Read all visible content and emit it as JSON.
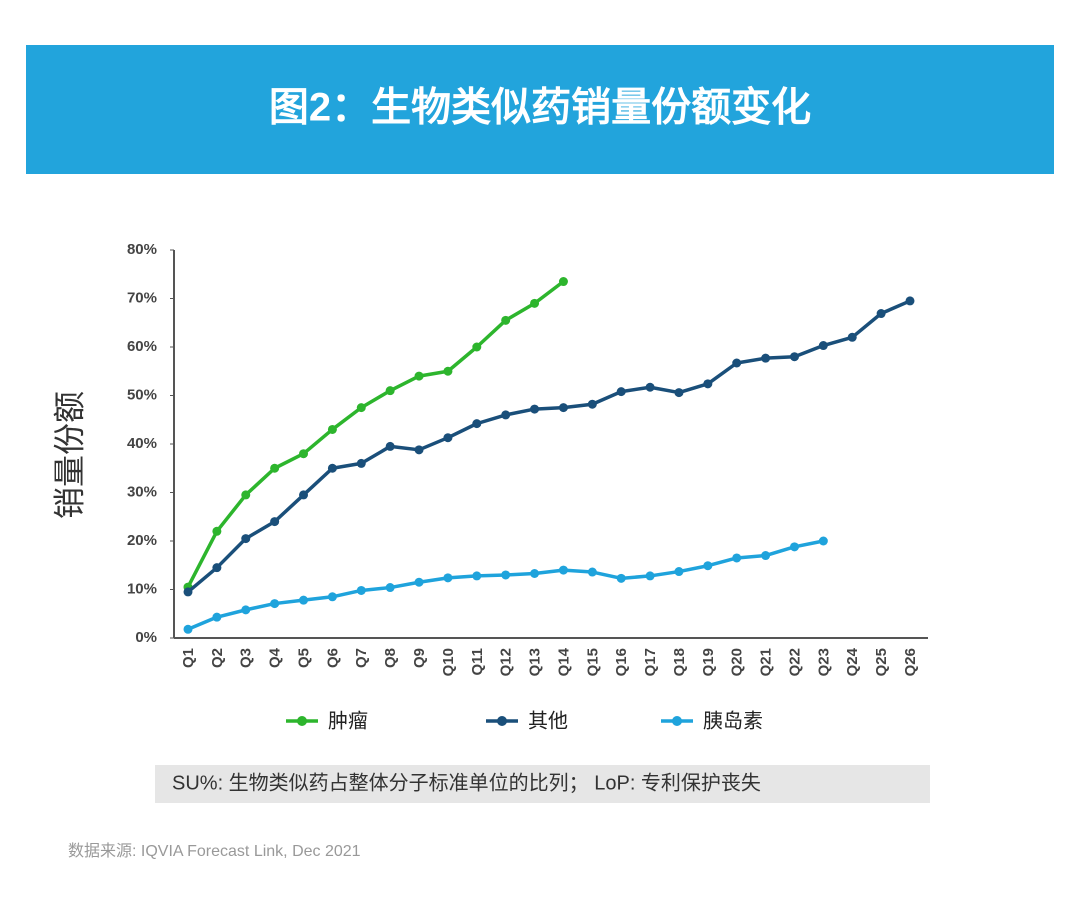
{
  "chart_data": {
    "type": "line",
    "title": "图2：生物类似药销量份额变化",
    "y_label": "销量份额",
    "categories": [
      "Q1",
      "Q2",
      "Q3",
      "Q4",
      "Q5",
      "Q6",
      "Q7",
      "Q8",
      "Q9",
      "Q10",
      "Q11",
      "Q12",
      "Q13",
      "Q14",
      "Q15",
      "Q16",
      "Q17",
      "Q18",
      "Q19",
      "Q20",
      "Q21",
      "Q22",
      "Q23",
      "Q24",
      "Q25",
      "Q26"
    ],
    "series": [
      {
        "name": "肿瘤",
        "color": "#2db52d",
        "values": [
          10.5,
          22,
          29.5,
          35,
          38,
          43,
          47.5,
          51,
          54,
          55,
          60,
          65.5,
          69,
          73.5,
          null,
          null,
          null,
          null,
          null,
          null,
          null,
          null,
          null,
          null,
          null,
          null
        ]
      },
      {
        "name": "其他",
        "color": "#1a4f7a",
        "values": [
          9.5,
          14.5,
          20.5,
          24,
          29.5,
          35,
          36,
          39.5,
          38.8,
          41.3,
          44.2,
          46,
          47.2,
          47.5,
          48.2,
          50.8,
          51.7,
          50.6,
          52.4,
          56.7,
          57.7,
          58,
          60.3,
          62,
          66.9,
          69.5
        ]
      },
      {
        "name": "胰岛素",
        "color": "#1fa3dc",
        "values": [
          1.8,
          4.3,
          5.8,
          7.1,
          7.8,
          8.5,
          9.8,
          10.4,
          11.5,
          12.4,
          12.8,
          13,
          13.3,
          14,
          13.6,
          12.3,
          12.8,
          13.7,
          14.9,
          16.5,
          17,
          18.8,
          20,
          null,
          null,
          null
        ]
      }
    ],
    "ylim": [
      0,
      80
    ],
    "yticks": [
      {
        "value": 0,
        "label": "0%"
      },
      {
        "value": 10,
        "label": "10%"
      },
      {
        "value": 20,
        "label": "20%"
      },
      {
        "value": 30,
        "label": "30%"
      },
      {
        "value": 40,
        "label": "40%"
      },
      {
        "value": 50,
        "label": "50%"
      },
      {
        "value": 60,
        "label": "60%"
      },
      {
        "value": 70,
        "label": "70%"
      },
      {
        "value": 80,
        "label": "80%"
      }
    ],
    "grid": false,
    "legend": "bottom",
    "note": "SU%: 生物类似药占整体分子标准单位的比列；  LoP: 专利保护丧失",
    "source": "数据来源: IQVIA Forecast Link, Dec 2021"
  }
}
